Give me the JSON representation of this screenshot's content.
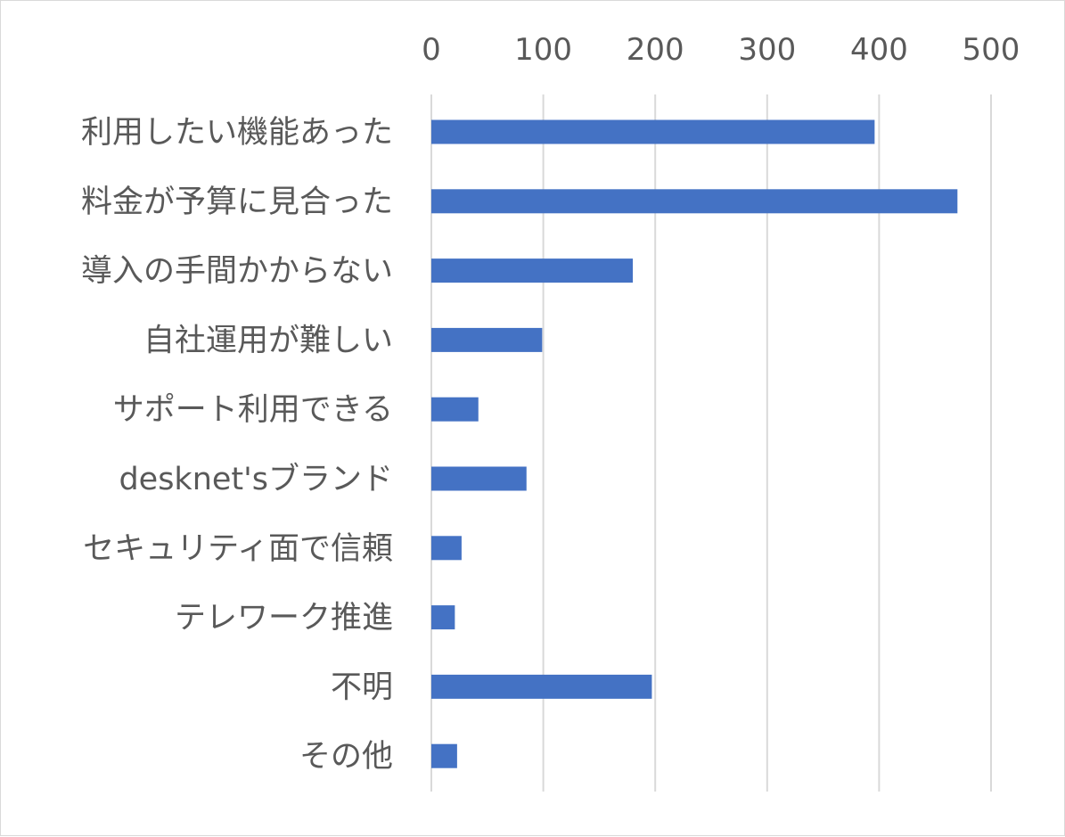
{
  "chart_data": {
    "type": "bar",
    "orientation": "horizontal",
    "categories": [
      "利用したい機能あった",
      "料金が予算に見合った",
      "導入の手間かからない",
      "自社運用が難しい",
      "サポート利用できる",
      "desknet'sブランド",
      "セキュリティ面で信頼",
      "テレワーク推進",
      "不明",
      "その他"
    ],
    "values": [
      396,
      470,
      180,
      99,
      42,
      85,
      27,
      21,
      197,
      23
    ],
    "xlim": [
      0,
      500
    ],
    "xticks": [
      0,
      100,
      200,
      300,
      400,
      500
    ],
    "x_axis_position": "top",
    "grid": true,
    "legend": "none",
    "bar_color": "#4472c4",
    "grid_color": "#d9d9d9",
    "text_color": "#595959"
  }
}
